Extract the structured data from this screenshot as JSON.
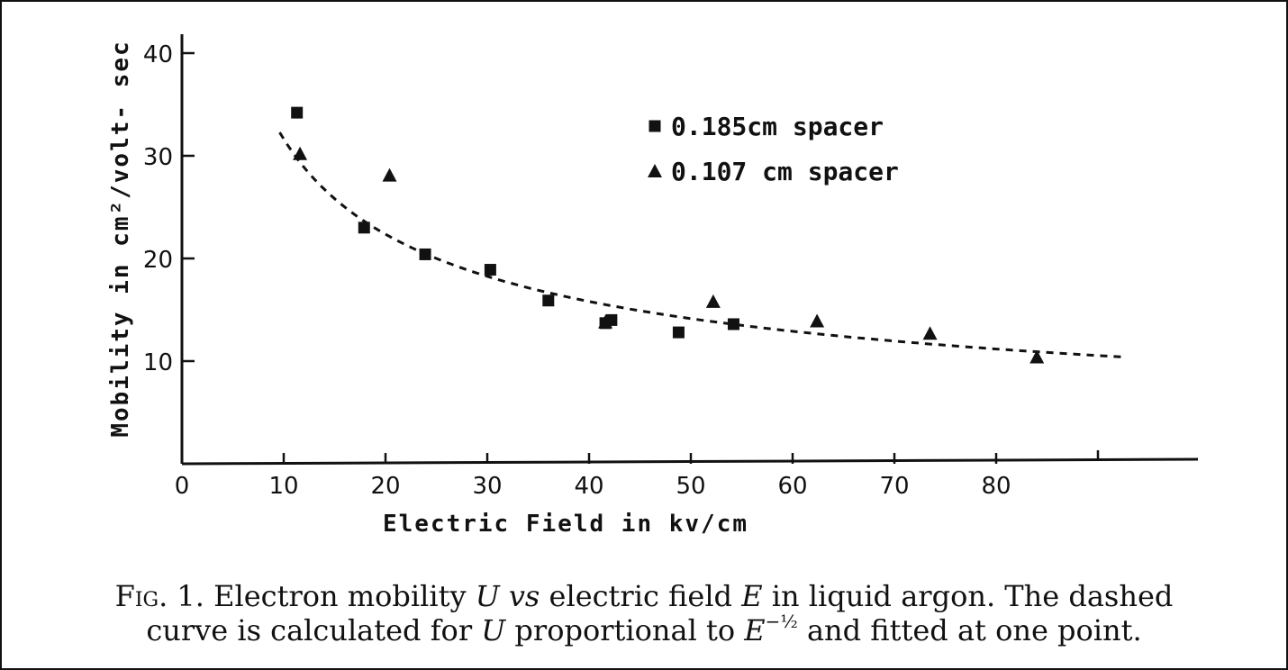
{
  "chart_data": {
    "type": "scatter",
    "xlabel": "Electric Field in kv/cm",
    "ylabel": "Mobility in cm²/volt- sec",
    "xlim": [
      0,
      91
    ],
    "ylim": [
      0,
      42
    ],
    "x_ticks": [
      0,
      10,
      20,
      30,
      40,
      50,
      60,
      70,
      80
    ],
    "x_minor_ticks": [
      90
    ],
    "y_ticks": [
      10,
      20,
      30,
      40
    ],
    "grid": false,
    "legend_position": "top-right",
    "series": [
      {
        "name": "0.185cm spacer",
        "marker": "square",
        "points": [
          [
            11.3,
            34.2
          ],
          [
            17.9,
            23.0
          ],
          [
            23.9,
            20.4
          ],
          [
            30.3,
            18.9
          ],
          [
            36.0,
            15.9
          ],
          [
            41.6,
            13.7
          ],
          [
            42.2,
            14.0
          ],
          [
            48.8,
            12.8
          ],
          [
            54.2,
            13.6
          ]
        ]
      },
      {
        "name": "0.107 cm spacer",
        "marker": "triangle",
        "points": [
          [
            11.6,
            30.2
          ],
          [
            20.4,
            28.1
          ],
          [
            41.6,
            13.8
          ],
          [
            52.2,
            15.8
          ],
          [
            62.4,
            13.9
          ],
          [
            73.5,
            12.7
          ],
          [
            84.0,
            10.4
          ]
        ]
      }
    ],
    "fit_curve": {
      "style": "dashed",
      "x_range": [
        9.6,
        92.3
      ],
      "model": "proportional to E^-1/2",
      "coefficient": 100
    }
  },
  "caption": {
    "fig_label": "Fig. 1.",
    "text_1": "Electron mobility ",
    "var_u": "U",
    "text_vs": " vs ",
    "text_2": "electric field ",
    "var_e": "E",
    "text_3": " in liquid argon. The dashed",
    "text_4": "curve is calculated for ",
    "var_u2": "U",
    "text_5": " proportional to ",
    "var_e2": "E",
    "exponent": "−½",
    "text_6": " and fitted at one point."
  },
  "colors": {
    "ink": "#111111",
    "background": "#ffffff"
  }
}
